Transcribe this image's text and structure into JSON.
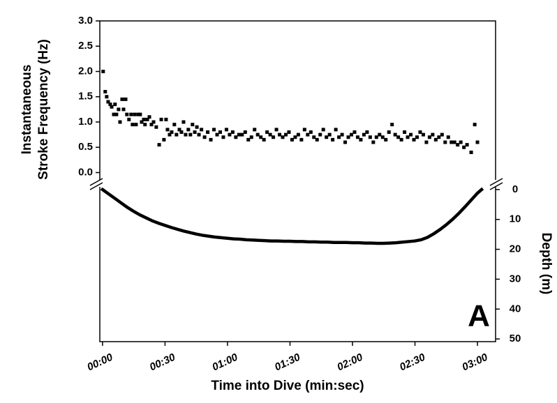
{
  "chart_data": {
    "type": "scatter",
    "ylabel": [
      "Instantaneous",
      "Stroke Frequency (Hz)"
    ],
    "y2label": "Depth (m)",
    "xlabel": "Time into Dive (min:sec)",
    "annotation": "A",
    "xlim": [
      -1.3,
      188.7
    ],
    "xticks": [
      {
        "value": 0,
        "label": "00:00"
      },
      {
        "value": 30,
        "label": "00:30"
      },
      {
        "value": 60,
        "label": "01:00"
      },
      {
        "value": 90,
        "label": "01:30"
      },
      {
        "value": 120,
        "label": "02:00"
      },
      {
        "value": 150,
        "label": "02:30"
      },
      {
        "value": 180,
        "label": "03:00"
      }
    ],
    "ylim": [
      -0.2,
      3.0
    ],
    "yticks": [
      {
        "value": 0,
        "label": "0.0"
      },
      0.5,
      {
        "value": 1,
        "label": "1.0"
      },
      1.5,
      {
        "value": 2,
        "label": "2.0"
      },
      2.5,
      {
        "value": 3,
        "label": "3.0"
      }
    ],
    "y2lim": [
      -2.3,
      50.9
    ],
    "y2_reversed": true,
    "y2ticks": [
      0,
      10,
      20,
      30,
      40,
      50
    ],
    "series": [
      {
        "color": "#000000",
        "x": [
          0.3,
          1.3,
          2.0,
          2.7,
          3.7,
          4.4,
          5.4,
          6.0,
          6.7,
          7.7,
          8.4,
          9.4,
          10.1,
          11.1,
          11.7,
          12.7,
          13.7,
          14.4,
          15.4,
          16.1,
          17.1,
          18.1,
          18.8,
          19.8,
          20.4,
          21.5,
          22.5,
          23.5,
          24.5,
          25.8,
          27.2,
          28.2,
          29.5,
          30.5,
          31.2,
          32.2,
          33.2,
          34.5,
          35.5,
          36.9,
          37.9,
          38.9,
          39.9,
          41.2,
          42.2,
          43.2,
          44.3,
          45.3,
          46.3,
          47.5,
          49,
          50.5,
          52,
          53.5,
          55,
          56.5,
          58,
          59.5,
          61,
          62.5,
          64,
          65.5,
          67,
          68.5,
          70,
          71.5,
          73,
          74.5,
          76,
          77.5,
          79,
          80.5,
          82,
          83.5,
          85,
          86.5,
          88,
          89.5,
          91,
          92.5,
          94,
          95.5,
          97,
          98.5,
          100,
          101.5,
          103,
          104.5,
          106,
          107.5,
          109,
          110.5,
          112,
          113.5,
          115,
          116.5,
          118,
          119.5,
          121,
          122.5,
          124,
          125.5,
          127,
          128.5,
          130,
          131.5,
          133,
          134.5,
          136,
          137.5,
          139,
          140.5,
          142,
          143.5,
          145,
          146.5,
          148,
          149.5,
          151,
          152.5,
          154,
          155.5,
          157,
          158.5,
          160,
          161.5,
          163,
          164.5,
          166,
          167.5,
          169,
          170.5,
          172,
          173.5,
          175,
          177,
          178.7,
          180
        ],
        "values": [
          2.0,
          1.6,
          1.5,
          1.4,
          1.35,
          1.3,
          1.15,
          1.35,
          1.15,
          1.25,
          1.0,
          1.45,
          1.25,
          1.45,
          1.15,
          1.05,
          1.15,
          0.95,
          1.15,
          0.95,
          1.15,
          1.15,
          1.0,
          1.05,
          0.95,
          1.05,
          1.1,
          0.95,
          1.0,
          0.9,
          0.55,
          1.05,
          0.65,
          1.05,
          0.85,
          0.75,
          0.8,
          0.95,
          0.75,
          0.85,
          0.8,
          1.0,
          0.75,
          0.85,
          0.75,
          0.95,
          0.8,
          0.9,
          0.75,
          0.85,
          0.7,
          0.8,
          0.65,
          0.85,
          0.75,
          0.8,
          0.7,
          0.85,
          0.75,
          0.8,
          0.7,
          0.75,
          0.75,
          0.8,
          0.65,
          0.7,
          0.85,
          0.75,
          0.7,
          0.65,
          0.8,
          0.75,
          0.7,
          0.85,
          0.75,
          0.7,
          0.75,
          0.8,
          0.65,
          0.7,
          0.75,
          0.65,
          0.85,
          0.75,
          0.8,
          0.7,
          0.65,
          0.75,
          0.85,
          0.7,
          0.75,
          0.65,
          0.85,
          0.7,
          0.75,
          0.6,
          0.7,
          0.75,
          0.8,
          0.7,
          0.65,
          0.75,
          0.8,
          0.7,
          0.6,
          0.7,
          0.75,
          0.7,
          0.65,
          0.8,
          0.95,
          0.75,
          0.7,
          0.65,
          0.8,
          0.7,
          0.75,
          0.65,
          0.7,
          0.8,
          0.75,
          0.6,
          0.7,
          0.75,
          0.65,
          0.7,
          0.75,
          0.6,
          0.7,
          0.6,
          0.6,
          0.55,
          0.6,
          0.5,
          0.55,
          0.4,
          0.95,
          0.6
        ]
      },
      {
        "color": "#000000",
        "axis": "y2",
        "x": [
          0,
          3,
          6,
          9,
          12,
          15,
          18,
          21,
          24,
          27,
          30,
          33,
          36,
          39,
          42,
          45,
          48,
          51,
          54,
          57,
          60,
          63,
          66,
          69,
          72,
          75,
          78,
          81,
          84,
          87,
          90,
          93,
          96,
          99,
          102,
          105,
          108,
          111,
          114,
          117,
          120,
          123,
          126,
          129,
          132,
          135,
          138,
          141,
          144,
          147,
          150,
          153,
          156,
          159,
          162,
          165,
          168,
          171,
          174,
          177,
          180,
          182
        ],
        "values": [
          0,
          1.5,
          3,
          4.5,
          6,
          7.3,
          8.5,
          9.5,
          10.5,
          11.3,
          12,
          12.7,
          13.3,
          13.9,
          14.4,
          14.9,
          15.3,
          15.6,
          15.9,
          16.1,
          16.3,
          16.5,
          16.6,
          16.8,
          16.9,
          17,
          17.1,
          17.2,
          17.2,
          17.3,
          17.3,
          17.4,
          17.4,
          17.5,
          17.5,
          17.6,
          17.6,
          17.7,
          17.7,
          17.7,
          17.8,
          17.8,
          17.9,
          17.9,
          18,
          18,
          17.9,
          17.8,
          17.6,
          17.4,
          17.2,
          16.8,
          16,
          14.8,
          13.4,
          11.8,
          10,
          8,
          5.8,
          3.5,
          1.2,
          0
        ]
      }
    ]
  }
}
